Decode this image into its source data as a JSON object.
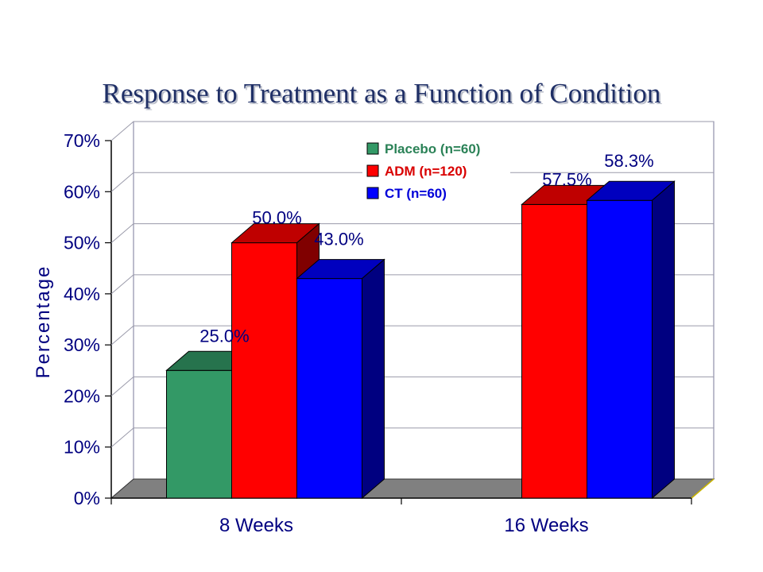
{
  "chart_data": {
    "type": "bar",
    "title": "Response to Treatment as a Function of Condition",
    "xlabel": "",
    "ylabel": "Percentage",
    "categories": [
      "8 Weeks",
      "16 Weeks"
    ],
    "ylim": [
      0,
      70
    ],
    "yticks": [
      "0%",
      "10%",
      "20%",
      "30%",
      "40%",
      "50%",
      "60%",
      "70%"
    ],
    "grid": true,
    "legend_position": "top-right",
    "series": [
      {
        "name": "Placebo (n=60)",
        "color": "#339966",
        "values": [
          25.0,
          null
        ],
        "labels": [
          "25.0%",
          null
        ]
      },
      {
        "name": "ADM (n=120)",
        "color": "#ff0000",
        "values": [
          50.0,
          57.5
        ],
        "labels": [
          "50.0%",
          "57.5%"
        ]
      },
      {
        "name": "CT (n=60)",
        "color": "#0000ff",
        "values": [
          43.0,
          58.3
        ],
        "labels": [
          "43.0%",
          "58.3%"
        ]
      }
    ]
  }
}
